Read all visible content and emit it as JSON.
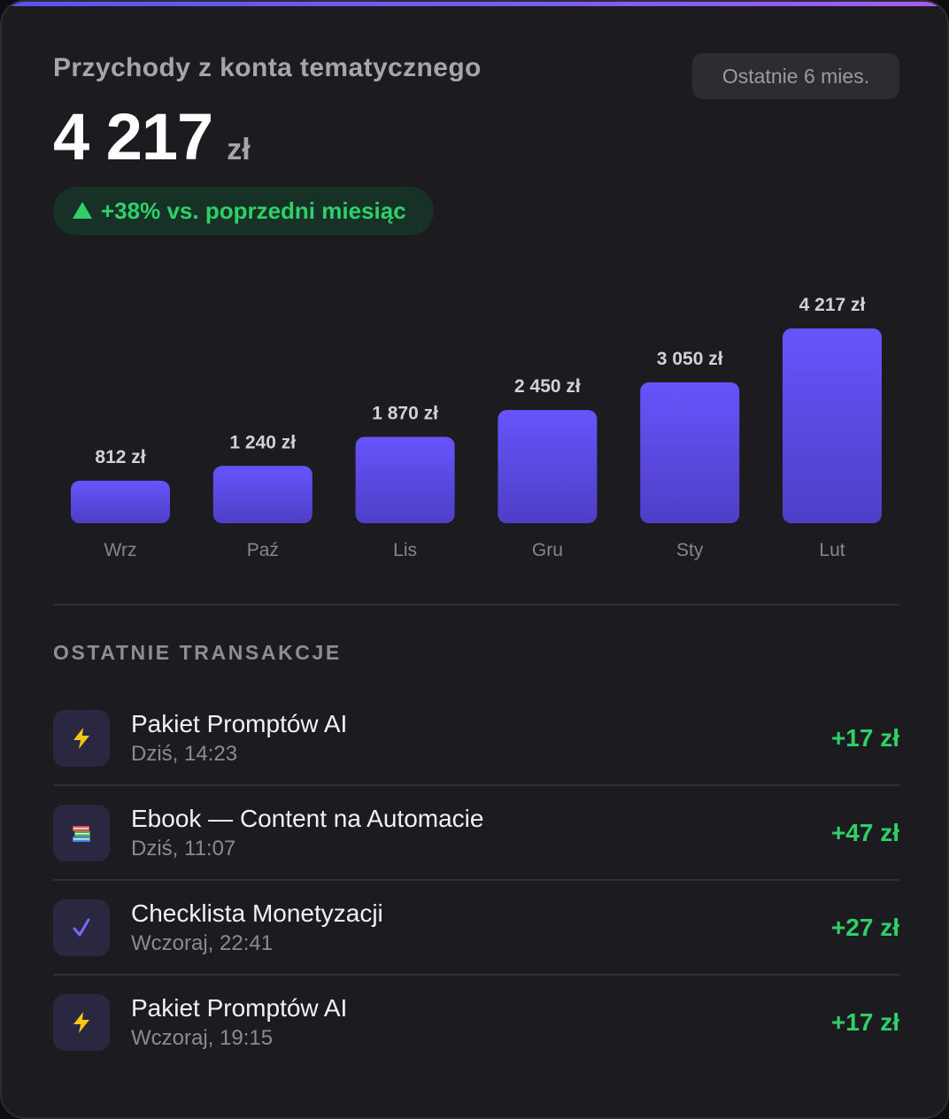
{
  "header": {
    "title": "Przychody z konta tematycznego",
    "period_button": "Ostatnie 6 mies.",
    "total_value": "4 217",
    "total_currency": "zł",
    "change": "+38% vs. poprzedni miesiąc"
  },
  "chart_data": {
    "type": "bar",
    "categories": [
      "Wrz",
      "Paź",
      "Lis",
      "Gru",
      "Sty",
      "Lut"
    ],
    "values": [
      812,
      1240,
      1870,
      2450,
      3050,
      4217
    ],
    "data_labels": [
      "812 zł",
      "1 240 zł",
      "1 870 zł",
      "2 450 zł",
      "3 050 zł",
      "4 217 zł"
    ],
    "ylim": [
      0,
      4217
    ],
    "grid": false
  },
  "transactions": {
    "section_title": "OSTATNIE TRANSAKCJE",
    "items": [
      {
        "icon": "lightning-icon",
        "glyph": "⚡",
        "name": "Pakiet Promptów AI",
        "time": "Dziś, 14:23",
        "amount": "+17 zł"
      },
      {
        "icon": "books-icon",
        "glyph": "📚",
        "name": "Ebook — Content na Automacie",
        "time": "Dziś, 11:07",
        "amount": "+47 zł"
      },
      {
        "icon": "checkmark-icon",
        "glyph": "✓",
        "name": "Checklista Monetyzacji",
        "time": "Wczoraj, 22:41",
        "amount": "+27 zł"
      },
      {
        "icon": "lightning-icon",
        "glyph": "⚡",
        "name": "Pakiet Promptów AI",
        "time": "Wczoraj, 19:15",
        "amount": "+17 zł"
      }
    ]
  },
  "colors": {
    "accent": "#6452f5",
    "positive": "#2fd06a",
    "background": "#1c1c20"
  }
}
